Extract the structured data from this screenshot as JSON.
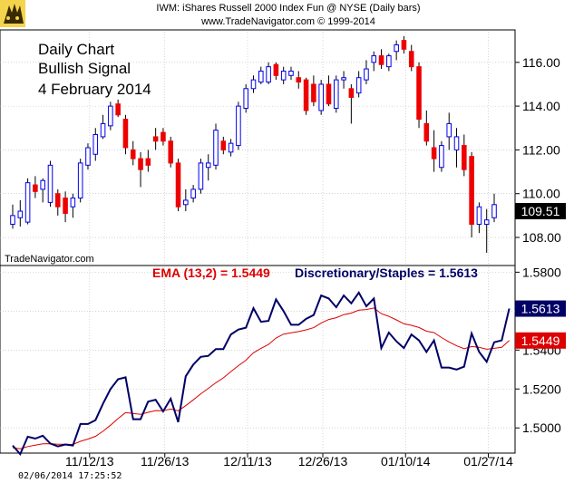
{
  "header": {
    "title": "IWM:  iShares Russell 2000 Index Fun @ NYSE  (Daily bars)",
    "copyright": "www.TradeNavigator.com © 1999-2014"
  },
  "annotation": [
    "Daily Chart",
    "Bullish Signal",
    "4 February 2014"
  ],
  "watermark": "TradeNavigator.com",
  "timestamp": "02/06/2014 17:25:52",
  "colors": {
    "up": "#0000ee",
    "down": "#ee0000",
    "indicator": "#000066",
    "ema": "#dd0000",
    "grid": "#bbbbbb"
  },
  "chart_data": [
    {
      "type": "candlestick",
      "title": "IWM:  iShares Russell 2000 Index Fun @ NYSE  (Daily bars)",
      "ylim": [
        106.8,
        117.4
      ],
      "yticks": [
        "108.00",
        "110.00",
        "112.00",
        "114.00",
        "116.00"
      ],
      "last_value_label": "109.51",
      "candles": [
        {
          "o": 108.6,
          "h": 109.5,
          "l": 108.4,
          "c": 109.0
        },
        {
          "o": 108.9,
          "h": 109.7,
          "l": 108.5,
          "c": 109.2
        },
        {
          "o": 108.7,
          "h": 110.7,
          "l": 108.6,
          "c": 110.5
        },
        {
          "o": 110.4,
          "h": 110.8,
          "l": 109.8,
          "c": 110.1
        },
        {
          "o": 110.2,
          "h": 110.7,
          "l": 109.6,
          "c": 110.6
        },
        {
          "o": 109.6,
          "h": 111.5,
          "l": 109.4,
          "c": 111.3
        },
        {
          "o": 110.0,
          "h": 110.2,
          "l": 109.0,
          "c": 109.4
        },
        {
          "o": 109.8,
          "h": 110.1,
          "l": 108.7,
          "c": 109.1
        },
        {
          "o": 109.4,
          "h": 110.0,
          "l": 108.9,
          "c": 109.8
        },
        {
          "o": 109.8,
          "h": 111.6,
          "l": 109.6,
          "c": 111.4
        },
        {
          "o": 111.3,
          "h": 112.3,
          "l": 111.1,
          "c": 112.1
        },
        {
          "o": 111.8,
          "h": 113.0,
          "l": 111.5,
          "c": 112.7
        },
        {
          "o": 112.6,
          "h": 113.6,
          "l": 112.5,
          "c": 113.2
        },
        {
          "o": 113.1,
          "h": 114.2,
          "l": 112.9,
          "c": 114.0
        },
        {
          "o": 114.1,
          "h": 114.3,
          "l": 113.5,
          "c": 113.6
        },
        {
          "o": 113.4,
          "h": 113.6,
          "l": 111.8,
          "c": 112.1
        },
        {
          "o": 112.0,
          "h": 112.4,
          "l": 111.3,
          "c": 111.6
        },
        {
          "o": 111.6,
          "h": 111.9,
          "l": 110.3,
          "c": 111.1
        },
        {
          "o": 111.6,
          "h": 112.0,
          "l": 111.0,
          "c": 111.3
        },
        {
          "o": 112.6,
          "h": 113.0,
          "l": 112.0,
          "c": 112.4
        },
        {
          "o": 112.8,
          "h": 113.0,
          "l": 112.2,
          "c": 112.4
        },
        {
          "o": 112.4,
          "h": 112.6,
          "l": 111.2,
          "c": 111.4
        },
        {
          "o": 111.4,
          "h": 111.6,
          "l": 109.2,
          "c": 109.4
        },
        {
          "o": 109.5,
          "h": 110.2,
          "l": 109.2,
          "c": 109.7
        },
        {
          "o": 109.8,
          "h": 110.4,
          "l": 109.6,
          "c": 110.2
        },
        {
          "o": 110.2,
          "h": 111.6,
          "l": 110.0,
          "c": 111.4
        },
        {
          "o": 111.2,
          "h": 111.8,
          "l": 110.6,
          "c": 111.4
        },
        {
          "o": 111.3,
          "h": 113.2,
          "l": 111.1,
          "c": 112.9
        },
        {
          "o": 112.4,
          "h": 112.6,
          "l": 111.8,
          "c": 112.0
        },
        {
          "o": 111.9,
          "h": 112.5,
          "l": 111.7,
          "c": 112.3
        },
        {
          "o": 112.2,
          "h": 114.2,
          "l": 112.0,
          "c": 114.0
        },
        {
          "o": 113.9,
          "h": 115.0,
          "l": 113.7,
          "c": 114.8
        },
        {
          "o": 114.8,
          "h": 115.4,
          "l": 114.6,
          "c": 115.2
        },
        {
          "o": 115.1,
          "h": 115.8,
          "l": 115.0,
          "c": 115.6
        },
        {
          "o": 115.1,
          "h": 116.0,
          "l": 115.0,
          "c": 115.8
        },
        {
          "o": 115.9,
          "h": 116.0,
          "l": 115.2,
          "c": 115.4
        },
        {
          "o": 115.2,
          "h": 115.8,
          "l": 115.0,
          "c": 115.6
        },
        {
          "o": 115.4,
          "h": 115.8,
          "l": 115.2,
          "c": 115.6
        },
        {
          "o": 115.3,
          "h": 115.6,
          "l": 114.8,
          "c": 115.1
        },
        {
          "o": 115.2,
          "h": 115.3,
          "l": 113.6,
          "c": 113.8
        },
        {
          "o": 115.0,
          "h": 115.4,
          "l": 114.0,
          "c": 114.2
        },
        {
          "o": 113.8,
          "h": 115.2,
          "l": 113.6,
          "c": 115.0
        },
        {
          "o": 115.0,
          "h": 115.4,
          "l": 114.0,
          "c": 114.1
        },
        {
          "o": 113.9,
          "h": 115.4,
          "l": 113.7,
          "c": 115.2
        },
        {
          "o": 115.2,
          "h": 115.6,
          "l": 114.8,
          "c": 115.3
        },
        {
          "o": 114.8,
          "h": 115.0,
          "l": 113.2,
          "c": 114.4
        },
        {
          "o": 114.6,
          "h": 115.6,
          "l": 114.4,
          "c": 115.3
        },
        {
          "o": 115.2,
          "h": 116.1,
          "l": 115.0,
          "c": 115.7
        },
        {
          "o": 116.0,
          "h": 116.5,
          "l": 115.6,
          "c": 116.3
        },
        {
          "o": 116.3,
          "h": 116.6,
          "l": 115.7,
          "c": 115.9
        },
        {
          "o": 115.8,
          "h": 116.4,
          "l": 115.6,
          "c": 116.3
        },
        {
          "o": 116.5,
          "h": 117.0,
          "l": 116.1,
          "c": 116.8
        },
        {
          "o": 117.0,
          "h": 117.2,
          "l": 116.4,
          "c": 116.6
        },
        {
          "o": 116.5,
          "h": 116.8,
          "l": 115.6,
          "c": 115.8
        },
        {
          "o": 115.8,
          "h": 116.0,
          "l": 113.0,
          "c": 113.4
        },
        {
          "o": 113.2,
          "h": 113.8,
          "l": 112.2,
          "c": 112.4
        },
        {
          "o": 112.1,
          "h": 112.9,
          "l": 111.0,
          "c": 111.6
        },
        {
          "o": 111.2,
          "h": 112.4,
          "l": 111.0,
          "c": 112.2
        },
        {
          "o": 112.6,
          "h": 113.7,
          "l": 112.0,
          "c": 113.2
        },
        {
          "o": 112.0,
          "h": 113.0,
          "l": 111.2,
          "c": 112.6
        },
        {
          "o": 112.2,
          "h": 112.7,
          "l": 110.8,
          "c": 111.1
        },
        {
          "o": 111.7,
          "h": 111.9,
          "l": 108.0,
          "c": 108.6
        },
        {
          "o": 108.6,
          "h": 109.6,
          "l": 108.2,
          "c": 109.4
        },
        {
          "o": 108.6,
          "h": 109.3,
          "l": 107.3,
          "c": 108.8
        },
        {
          "o": 108.9,
          "h": 110.0,
          "l": 108.7,
          "c": 109.5
        }
      ]
    },
    {
      "type": "line",
      "title": "",
      "ylim": [
        1.488,
        1.5825
      ],
      "yticks": [
        "1.5000",
        "1.5200",
        "1.5400",
        "1.5600",
        "1.5800"
      ],
      "xticks": [
        "11/12/13",
        "11/26/13",
        "12/11/13",
        "12/26/13",
        "01/10/14",
        "01/27/14"
      ],
      "series": [
        {
          "name": "Discretionary/Staples = 1.5613",
          "last_value_label": "1.5613",
          "values": [
            1.491,
            1.4865,
            1.4955,
            1.4945,
            1.496,
            1.492,
            1.4905,
            1.4915,
            1.491,
            1.502,
            1.502,
            1.504,
            1.5125,
            1.52,
            1.525,
            1.526,
            1.5045,
            1.5045,
            1.5135,
            1.5145,
            1.5085,
            1.515,
            1.503,
            1.5265,
            1.5325,
            1.5365,
            1.537,
            1.5405,
            1.5405,
            1.548,
            1.5505,
            1.5515,
            1.5615,
            1.5545,
            1.555,
            1.566,
            1.56,
            1.553,
            1.553,
            1.556,
            1.558,
            1.568,
            1.5665,
            1.562,
            1.568,
            1.564,
            1.5695,
            1.5625,
            1.5665,
            1.541,
            1.549,
            1.5445,
            1.541,
            1.548,
            1.545,
            1.539,
            1.545,
            1.531,
            1.531,
            1.53,
            1.5315,
            1.5485,
            1.539,
            1.534,
            1.544,
            1.545,
            1.5613
          ]
        },
        {
          "name": "EMA (13,2) = 1.5449",
          "last_value_label": "1.5449",
          "values": [
            1.4898,
            1.4893,
            1.4904,
            1.4911,
            1.4918,
            1.4919,
            1.4916,
            1.4916,
            1.4915,
            1.4931,
            1.4943,
            1.4957,
            1.4983,
            1.5014,
            1.5048,
            1.5079,
            1.5074,
            1.507,
            1.508,
            1.5089,
            1.5088,
            1.5097,
            1.5088,
            1.5114,
            1.5144,
            1.5175,
            1.5203,
            1.5232,
            1.5257,
            1.5289,
            1.532,
            1.5348,
            1.5386,
            1.5409,
            1.5429,
            1.5462,
            1.5482,
            1.5489,
            1.5495,
            1.5504,
            1.5515,
            1.5539,
            1.5557,
            1.5566,
            1.5582,
            1.559,
            1.5605,
            1.5608,
            1.5616,
            1.5587,
            1.5573,
            1.5555,
            1.5535,
            1.5527,
            1.5516,
            1.5497,
            1.549,
            1.5464,
            1.5442,
            1.5422,
            1.5407,
            1.5418,
            1.5414,
            1.5404,
            1.5409,
            1.5414,
            1.5449
          ]
        }
      ]
    }
  ]
}
